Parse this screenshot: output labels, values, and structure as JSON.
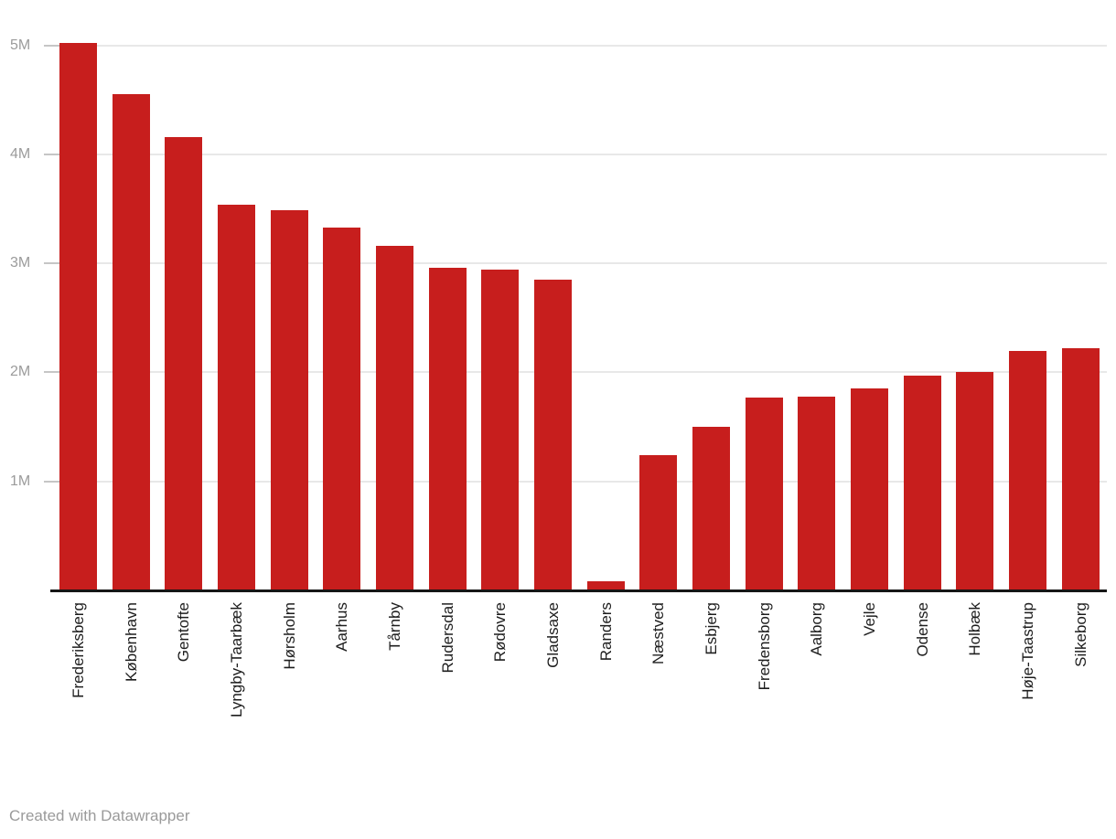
{
  "chart_data": {
    "type": "bar",
    "title": "",
    "xlabel": "",
    "ylabel": "",
    "categories": [
      "Frederiksberg",
      "København",
      "Gentofte",
      "Lyngby-Taarbæk",
      "Hørsholm",
      "Aarhus",
      "Tårnby",
      "Rudersdal",
      "Rødovre",
      "Gladsaxe",
      "Randers",
      "Næstved",
      "Esbjerg",
      "Fredensborg",
      "Aalborg",
      "Vejle",
      "Odense",
      "Holbæk",
      "Høje-Taastrup",
      "Silkeborg"
    ],
    "values": [
      5.02,
      4.55,
      4.16,
      3.54,
      3.49,
      3.33,
      3.16,
      2.96,
      2.94,
      2.85,
      0.08,
      1.24,
      1.5,
      1.77,
      1.78,
      1.85,
      1.97,
      2.0,
      2.2,
      2.22
    ],
    "unit": "M",
    "y_ticks": [
      {
        "value": 1,
        "label": "1M"
      },
      {
        "value": 2,
        "label": "2M"
      },
      {
        "value": 3,
        "label": "3M"
      },
      {
        "value": 4,
        "label": "4M"
      },
      {
        "value": 5,
        "label": "5M"
      }
    ],
    "ylim": [
      0,
      5.2
    ],
    "grid": "horizontal",
    "legend": "none",
    "colors": {
      "bar": "#c71e1d",
      "gridline": "#e8e8e8",
      "tick_stub": "#c6c6c6",
      "axis_line": "#161616",
      "y_label": "#9b9b9b",
      "x_label": "#1d1d1d"
    }
  },
  "footer": {
    "credit": "Created with Datawrapper"
  }
}
